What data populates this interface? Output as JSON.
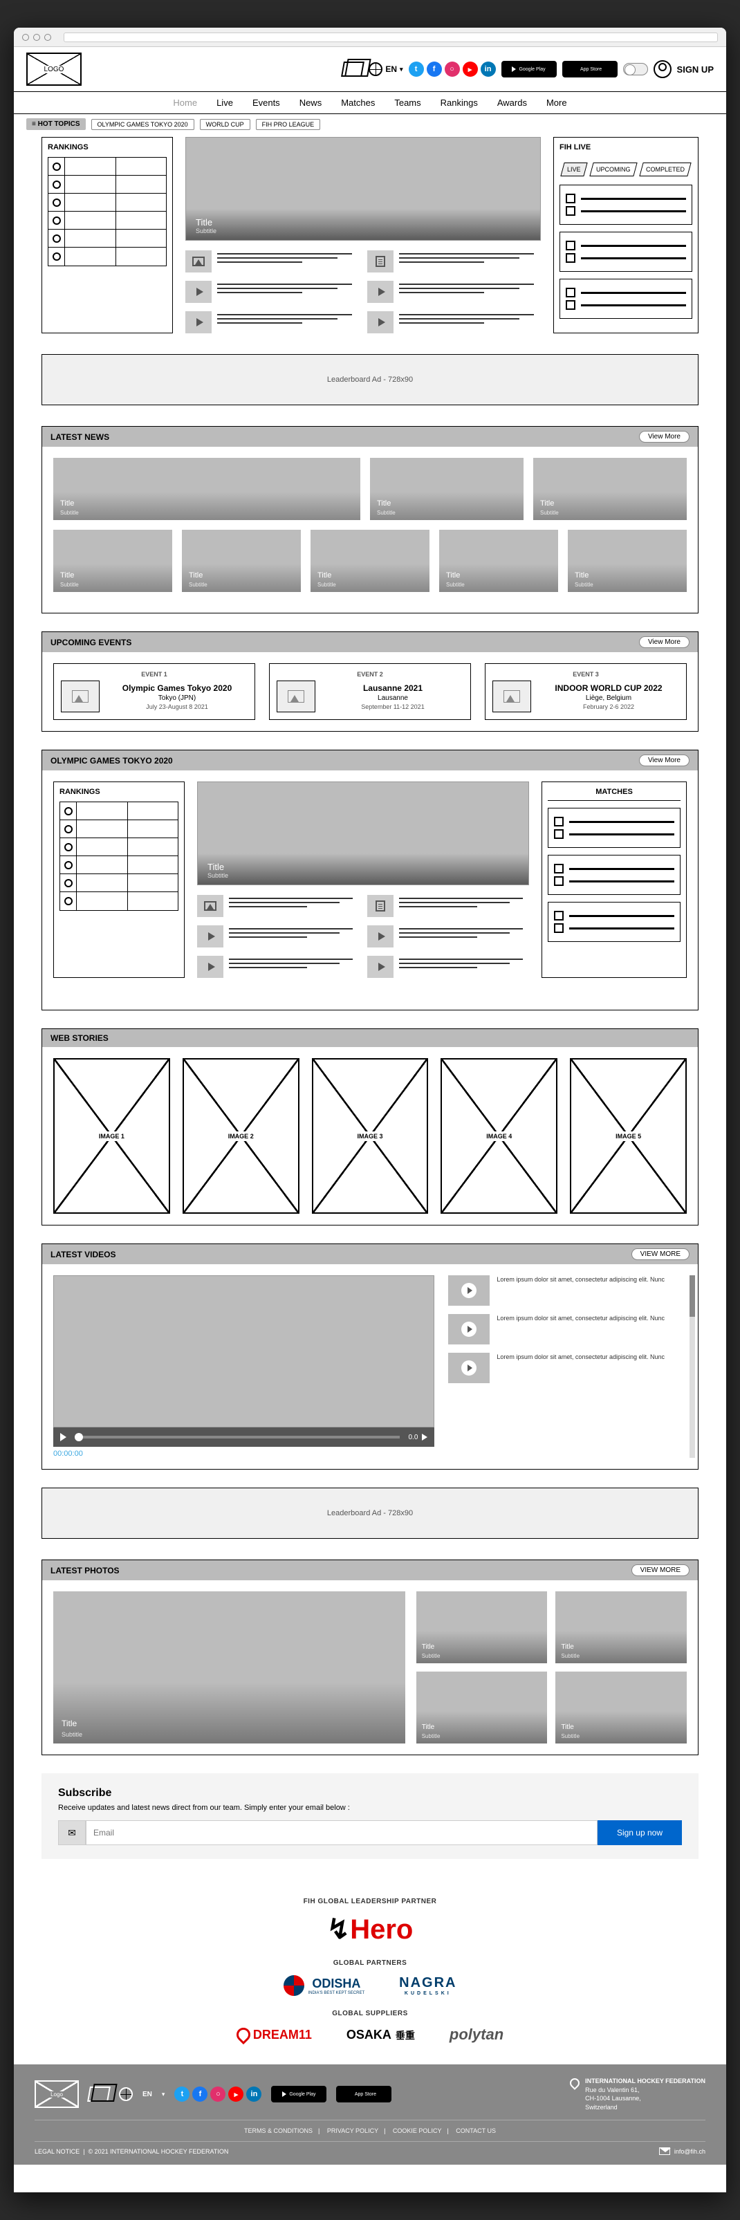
{
  "browser": {
    "logo": "LOGO"
  },
  "header": {
    "lang": "EN",
    "signup": "SIGN UP",
    "store_google": "Google Play",
    "store_apple": "App Store",
    "social_colors": {
      "tw": "#1da1f2",
      "fb": "#1877f2",
      "ig": "#e1306c",
      "yt": "#ff0000",
      "in": "#0077b5"
    }
  },
  "nav": [
    "Home",
    "Live",
    "Events",
    "News",
    "Matches",
    "Teams",
    "Rankings",
    "Awards",
    "More"
  ],
  "hot": {
    "label": "≡ HOT TOPICS",
    "tags": [
      "OLYMPIC GAMES TOKYO 2020",
      "WORLD CUP",
      "FIH PRO LEAGUE"
    ]
  },
  "rankings": {
    "title": "RANKINGS",
    "rows": 6,
    "cols": 2
  },
  "hero": {
    "title": "Title",
    "subtitle": "Subtitle",
    "mini": [
      {
        "ico": "pic"
      },
      {
        "ico": "play"
      },
      {
        "ico": "play"
      },
      {
        "ico": "doc"
      },
      {
        "ico": "play"
      },
      {
        "ico": "play"
      }
    ]
  },
  "fih": {
    "title": "FIH LIVE",
    "tabs": [
      "LIVE",
      "UPCOMING",
      "COMPLETED"
    ],
    "cards": 3
  },
  "ad1": "Leaderboard Ad - 728x90",
  "news": {
    "title": "LATEST NEWS",
    "view": "View More",
    "row1": [
      {
        "t": "Title",
        "s": "Subtitle"
      },
      {
        "t": "Title",
        "s": "Subtitle"
      },
      {
        "t": "Title",
        "s": "Subtitle"
      }
    ],
    "row2": [
      {
        "t": "Title",
        "s": "Subtitle"
      },
      {
        "t": "Title",
        "s": "Subtitle"
      },
      {
        "t": "Title",
        "s": "Subtitle"
      },
      {
        "t": "Title",
        "s": "Subtitle"
      },
      {
        "t": "Title",
        "s": "Subtitle"
      }
    ]
  },
  "events": {
    "title": "UPCOMING EVENTS",
    "view": "View More",
    "items": [
      {
        "label": "EVENT 1",
        "name": "Olympic Games Tokyo 2020",
        "loc": "Tokyo (JPN)",
        "date": "July 23-August 8 2021"
      },
      {
        "label": "EVENT 2",
        "name": "Lausanne 2021",
        "loc": "Lausanne",
        "date": "September 11-12 2021"
      },
      {
        "label": "EVENT 3",
        "name": "INDOOR WORLD CUP 2022",
        "loc": "Liège, Belgium",
        "date": "February 2-6 2022"
      }
    ]
  },
  "olympic": {
    "title": "OLYMPIC GAMES TOKYO 2020",
    "view": "View More",
    "rankings": "RANKINGS",
    "matches": "MATCHES",
    "hero": {
      "title": "Title",
      "subtitle": "Subtitle"
    }
  },
  "stories": {
    "title": "WEB STORIES",
    "items": [
      "IMAGE 1",
      "IMAGE 2",
      "IMAGE 3",
      "IMAGE 4",
      "IMAGE 5"
    ]
  },
  "videos": {
    "title": "LATEST VIDEOS",
    "view": "VIEW MORE",
    "time": "00:00:00",
    "vol": "0.0",
    "list": [
      "Lorem ipsum dolor sit amet, consectetur adipiscing elit. Nunc",
      "Lorem ipsum dolor sit amet, consectetur adipiscing elit. Nunc",
      "Lorem ipsum dolor sit amet, consectetur adipiscing elit. Nunc"
    ]
  },
  "ad2": "Leaderboard Ad - 728x90",
  "photos": {
    "title": "LATEST PHOTOS",
    "view": "VIEW MORE",
    "big": {
      "t": "Title",
      "s": "Subtitle"
    },
    "grid": [
      {
        "t": "Title",
        "s": "Subtitle"
      },
      {
        "t": "Title",
        "s": "Subtitle"
      },
      {
        "t": "Title",
        "s": "Subtitle"
      },
      {
        "t": "Title",
        "s": "Subtitle"
      }
    ]
  },
  "subscribe": {
    "title": "Subscribe",
    "desc": "Receive updates and latest news direct from our team. Simply enter your email below :",
    "placeholder": "Email",
    "btn": "Sign up now"
  },
  "partners": {
    "l1": "FIH GLOBAL LEADERSHIP PARTNER",
    "hero": "Hero",
    "l2": "GLOBAL PARTNERS",
    "odisha": "ODISHA",
    "odisha_sub": "INDIA'S BEST KEPT SECRET",
    "nagra": "NAGRA",
    "nagra_sub": "KUDELSKI",
    "l3": "GLOBAL SUPPLIERS",
    "dream": "DREAM11",
    "osaka": "OSAKA",
    "osaka_jp": "垂重",
    "polytan": "polytan"
  },
  "footer": {
    "logo": "Logo",
    "links": [
      "TERMS & CONDITIONS",
      "PRIVACY POLICY",
      "COOKIE POLICY",
      "CONTACT US"
    ],
    "addr_title": "INTERNATIONAL HOCKEY FEDERATION",
    "addr": "Rue du Valentin 61,\nCH-1004 Lausanne,\nSwitzerland",
    "legal": "LEGAL NOTICE",
    "copy": "© 2021 INTERNATIONAL HOCKEY FEDERATION",
    "email": "info@fih.ch"
  }
}
